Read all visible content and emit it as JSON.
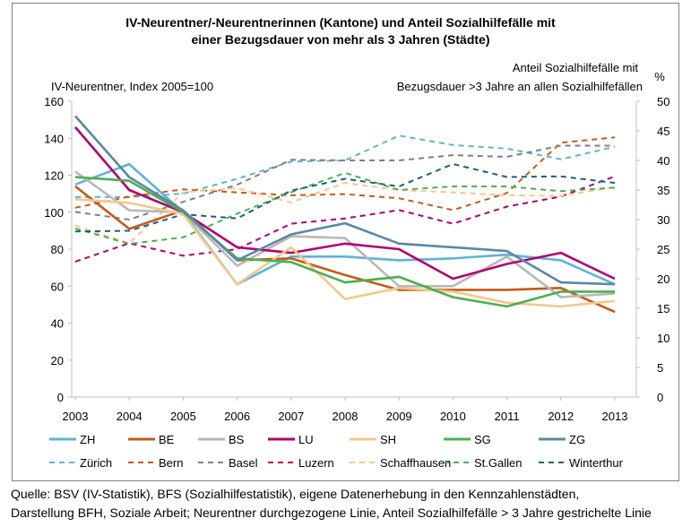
{
  "chart_data": {
    "type": "line",
    "title_line1": "IV-Neurentner/-Neurentnerinnen (Kantone) und Anteil Sozialhilfefälle mit",
    "title_line2": "einer Bezugsdauer von mehr als 3 Jahren (Städte)",
    "ylabel_left": "IV-Neurentner, Index 2005=100",
    "ylabel_right_line1": "Anteil Sozialhilfefälle mit",
    "ylabel_right_line2": "Bezugsdauer >3 Jahre an allen Sozialhilfefällen",
    "ylabel_right_unit": "%",
    "x": [
      "2003",
      "2004",
      "2005",
      "2006",
      "2007",
      "2008",
      "2009",
      "2010",
      "2011",
      "2012",
      "2013"
    ],
    "ylim_left": [
      0,
      160
    ],
    "yticks_left": [
      "0",
      "20",
      "40",
      "60",
      "80",
      "100",
      "120",
      "140",
      "160"
    ],
    "ylim_right": [
      0,
      50
    ],
    "yticks_right": [
      "0",
      "5",
      "10",
      "15",
      "20",
      "25",
      "30",
      "35",
      "40",
      "45",
      "50"
    ],
    "grid": false,
    "legend_position": "bottom",
    "series_left": [
      {
        "name": "ZH",
        "color": "#5fb3d6",
        "values": [
          115,
          126,
          100,
          61,
          76,
          76,
          74,
          75,
          77,
          74,
          61
        ]
      },
      {
        "name": "BE",
        "color": "#c55a18",
        "values": [
          114,
          91,
          101,
          74,
          75,
          66,
          58,
          58,
          58,
          59,
          46
        ]
      },
      {
        "name": "BS",
        "color": "#b8b8b8",
        "values": [
          122,
          101,
          100,
          71,
          87,
          86,
          60,
          60,
          76,
          54,
          56
        ]
      },
      {
        "name": "LU",
        "color": "#b2006e",
        "values": [
          146,
          112,
          100,
          81,
          78,
          83,
          80,
          64,
          72,
          78,
          64
        ]
      },
      {
        "name": "SH",
        "color": "#f5c88c",
        "values": [
          107,
          105,
          99,
          61,
          81,
          53,
          59,
          57,
          51,
          49,
          52
        ]
      },
      {
        "name": "SG",
        "color": "#4caf50",
        "values": [
          119,
          117,
          100,
          75,
          73,
          62,
          65,
          54,
          49,
          57,
          57
        ]
      },
      {
        "name": "ZG",
        "color": "#5b88a5",
        "values": [
          152,
          119,
          101,
          74,
          88,
          94,
          83,
          81,
          79,
          62,
          61
        ]
      }
    ],
    "series_right": [
      {
        "name": "Zürich",
        "color": "#5fb3d6",
        "values": [
          33.8,
          33.8,
          34.4,
          36.9,
          39.8,
          40.0,
          44.2,
          42.6,
          42.0,
          40.2,
          42.3
        ]
      },
      {
        "name": "Bern",
        "color": "#c55a18",
        "values": [
          32.0,
          33.9,
          35.1,
          34.6,
          34.1,
          34.3,
          33.6,
          31.6,
          34.5,
          43.0,
          43.9
        ]
      },
      {
        "name": "Basel",
        "color": "#7f7f7f",
        "values": [
          31.3,
          30.0,
          33.0,
          35.9,
          40.1,
          40.0,
          40.0,
          40.9,
          40.6,
          42.5,
          42.5
        ]
      },
      {
        "name": "Luzern",
        "color": "#b2006e",
        "values": [
          22.9,
          26.0,
          23.9,
          25.0,
          29.3,
          30.2,
          31.6,
          29.3,
          32.2,
          33.9,
          37.3
        ]
      },
      {
        "name": "Schaffhausen",
        "color": "#f5c88c",
        "values": [
          29.0,
          26.0,
          34.6,
          35.3,
          32.9,
          36.2,
          35.0,
          34.6,
          34.1,
          34.0,
          35.5
        ]
      },
      {
        "name": "St.Gallen",
        "color": "#4caf50",
        "values": [
          28.5,
          25.9,
          27.0,
          31.0,
          34.6,
          37.9,
          35.0,
          35.6,
          35.6,
          34.8,
          35.4
        ]
      },
      {
        "name": "Winterthur",
        "color": "#1e5f7d",
        "values": [
          28.0,
          28.1,
          30.9,
          30.2,
          34.9,
          36.9,
          35.6,
          39.4,
          37.2,
          37.3,
          36.2
        ]
      }
    ]
  },
  "source": {
    "line1": "Quelle: BSV (IV-Statistik), BFS (Sozialhilfestatistik), eigene Datenerhebung in den Kennzahlenstädten,",
    "line2": "Darstellung BFH, Soziale Arbeit; Neurentner durchgezogene Linie, Anteil Sozialhilfefälle > 3 Jahre gestrichelte Linie"
  }
}
